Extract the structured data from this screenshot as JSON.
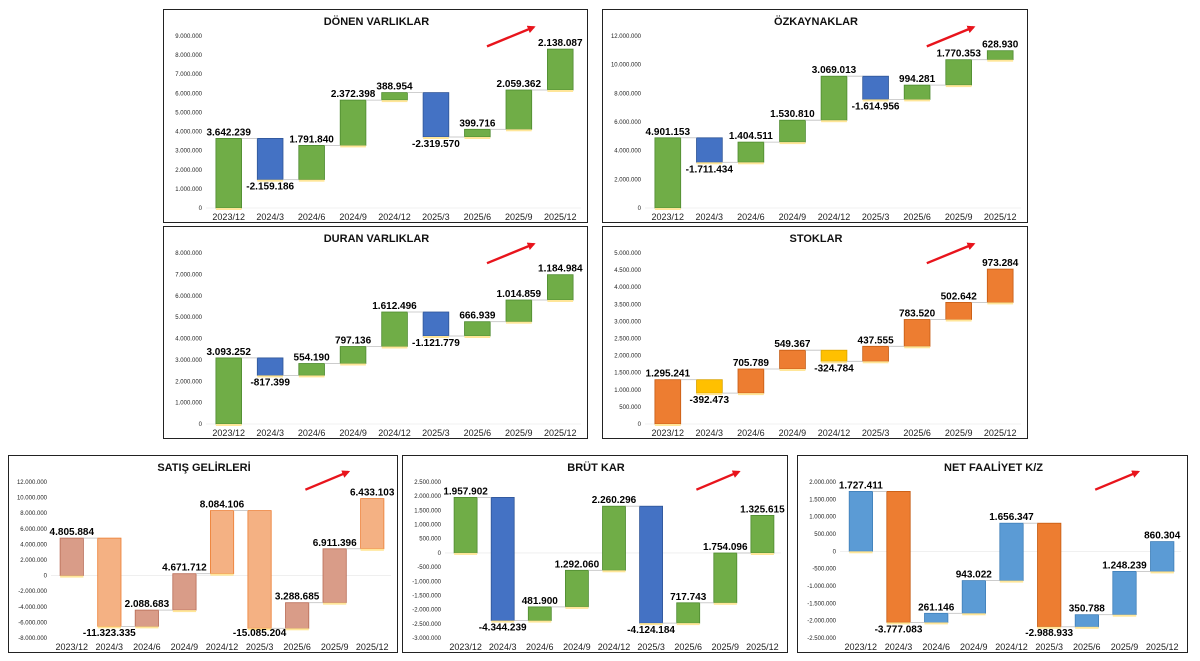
{
  "colors": {
    "green": "#70ad47",
    "green_edge": "#4e8a2f",
    "blue": "#4472c4",
    "blue_edge": "#2f5597",
    "orange": "#ed7d31",
    "orange_edge": "#c55a11",
    "gold": "#ffc000",
    "gold_edge": "#d9a300",
    "salmon": "#f4b183",
    "salmon_edge": "#ed7d31",
    "rosy": "#d99c88",
    "rosy_edge": "#b86b55",
    "lightblue": "#5b9bd5",
    "lightblue_edge": "#3f7fb8",
    "arrow": "#e8141c",
    "connector": "#bfbfbf"
  },
  "chart_data": [
    {
      "id": "donen",
      "type": "waterfall",
      "title": "DÖNEN VARLIKLAR",
      "categories": [
        "2023/12",
        "2024/3",
        "2024/6",
        "2024/9",
        "2024/12",
        "2025/3",
        "2025/6",
        "2025/9",
        "2025/12"
      ],
      "values": [
        3642239,
        -2159186,
        1791840,
        2372398,
        388954,
        -2319570,
        399716,
        2059362,
        2138087
      ],
      "labels": [
        "3.642.239",
        "-2.159.186",
        "1.791.840",
        "2.372.398",
        "388.954",
        "-2.319.570",
        "399.716",
        "2.059.362",
        "2.138.087"
      ],
      "yticks": [
        0,
        1000000,
        2000000,
        3000000,
        4000000,
        5000000,
        6000000,
        7000000,
        8000000,
        9000000
      ],
      "ytick_labels": [
        "0",
        "1.000.000",
        "2.000.000",
        "3.000.000",
        "4.000.000",
        "5.000.000",
        "6.000.000",
        "7.000.000",
        "8.000.000",
        "9.000.000"
      ],
      "ylim": [
        0,
        9000000
      ],
      "bar_colors": [
        "green",
        "blue",
        "green",
        "green",
        "green",
        "blue",
        "green",
        "green",
        "green"
      ]
    },
    {
      "id": "ozkaynaklar",
      "type": "waterfall",
      "title": "ÖZKAYNAKLAR",
      "categories": [
        "2023/12",
        "2024/3",
        "2024/6",
        "2024/9",
        "2024/12",
        "2025/3",
        "2025/6",
        "2025/9",
        "2025/12"
      ],
      "values": [
        4901153,
        -1711434,
        1404511,
        1530810,
        3069013,
        -1614956,
        994281,
        1770353,
        628930
      ],
      "labels": [
        "4.901.153",
        "-1.711.434",
        "1.404.511",
        "1.530.810",
        "3.069.013",
        "-1.614.956",
        "994.281",
        "1.770.353",
        "628.930"
      ],
      "yticks": [
        0,
        2000000,
        4000000,
        6000000,
        8000000,
        10000000,
        12000000
      ],
      "ytick_labels": [
        "0",
        "2.000.000",
        "4.000.000",
        "6.000.000",
        "8.000.000",
        "10.000.000",
        "12.000.000"
      ],
      "ylim": [
        0,
        12000000
      ],
      "bar_colors": [
        "green",
        "blue",
        "green",
        "green",
        "green",
        "blue",
        "green",
        "green",
        "green"
      ]
    },
    {
      "id": "duran",
      "type": "waterfall",
      "title": "DURAN VARLIKLAR",
      "categories": [
        "2023/12",
        "2024/3",
        "2024/6",
        "2024/9",
        "2024/12",
        "2025/3",
        "2025/6",
        "2025/9",
        "2025/12"
      ],
      "values": [
        3093252,
        -817399,
        554190,
        797136,
        1612496,
        -1121779,
        666939,
        1014859,
        1184984
      ],
      "labels": [
        "3.093.252",
        "-817.399",
        "554.190",
        "797.136",
        "1.612.496",
        "-1.121.779",
        "666.939",
        "1.014.859",
        "1.184.984"
      ],
      "yticks": [
        0,
        1000000,
        2000000,
        3000000,
        4000000,
        5000000,
        6000000,
        7000000,
        8000000
      ],
      "ytick_labels": [
        "0",
        "1.000.000",
        "2.000.000",
        "3.000.000",
        "4.000.000",
        "5.000.000",
        "6.000.000",
        "7.000.000",
        "8.000.000"
      ],
      "ylim": [
        0,
        8000000
      ],
      "bar_colors": [
        "green",
        "blue",
        "green",
        "green",
        "green",
        "blue",
        "green",
        "green",
        "green"
      ]
    },
    {
      "id": "stoklar",
      "type": "waterfall",
      "title": "STOKLAR",
      "categories": [
        "2023/12",
        "2024/3",
        "2024/6",
        "2024/9",
        "2024/12",
        "2025/3",
        "2025/6",
        "2025/9",
        "2025/12"
      ],
      "values": [
        1295241,
        -392473,
        705789,
        549367,
        -324784,
        437555,
        783520,
        502642,
        973284
      ],
      "labels": [
        "1.295.241",
        "-392.473",
        "705.789",
        "549.367",
        "-324.784",
        "437.555",
        "783.520",
        "502.642",
        "973.284"
      ],
      "yticks": [
        0,
        500000,
        1000000,
        1500000,
        2000000,
        2500000,
        3000000,
        3500000,
        4000000,
        4500000,
        5000000
      ],
      "ytick_labels": [
        "0",
        "500.000",
        "1.000.000",
        "1.500.000",
        "2.000.000",
        "2.500.000",
        "3.000.000",
        "3.500.000",
        "4.000.000",
        "4.500.000",
        "5.000.000"
      ],
      "ylim": [
        0,
        5000000
      ],
      "bar_colors": [
        "orange",
        "gold",
        "orange",
        "orange",
        "gold",
        "orange",
        "orange",
        "orange",
        "orange"
      ]
    },
    {
      "id": "satis",
      "type": "waterfall",
      "title": "SATIŞ GELİRLERİ",
      "categories": [
        "2023/12",
        "2024/3",
        "2024/6",
        "2024/9",
        "2024/12",
        "2025/3",
        "2025/6",
        "2025/9",
        "2025/12"
      ],
      "values": [
        4805884,
        -11323335,
        2088683,
        4671712,
        8084106,
        -15085204,
        3288685,
        6911396,
        6433103
      ],
      "labels": [
        "4.805.884",
        "-11.323.335",
        "2.088.683",
        "4.671.712",
        "8.084.106",
        "-15.085.204",
        "3.288.685",
        "6.911.396",
        "6.433.103"
      ],
      "yticks": [
        -8000000,
        -6000000,
        -4000000,
        -2000000,
        0,
        2000000,
        4000000,
        6000000,
        8000000,
        10000000,
        12000000
      ],
      "ytick_labels": [
        "-8.000.000",
        "-6.000.000",
        "-4.000.000",
        "-2.000.000",
        "0",
        "2.000.000",
        "4.000.000",
        "6.000.000",
        "8.000.000",
        "10.000.000",
        "12.000.000"
      ],
      "ylim": [
        -8000000,
        12000000
      ],
      "bar_colors": [
        "rosy",
        "salmon",
        "rosy",
        "rosy",
        "salmon",
        "salmon",
        "rosy",
        "rosy",
        "salmon"
      ]
    },
    {
      "id": "brut",
      "type": "waterfall",
      "title": "BRÜT KAR",
      "categories": [
        "2023/12",
        "2024/3",
        "2024/6",
        "2024/9",
        "2024/12",
        "2025/3",
        "2025/6",
        "2025/9",
        "2025/12"
      ],
      "values": [
        1957902,
        -4344239,
        481900,
        1292060,
        2260296,
        -4124184,
        717743,
        1754096,
        1325615
      ],
      "labels": [
        "1.957.902",
        "-4.344.239",
        "481.900",
        "1.292.060",
        "2.260.296",
        "-4.124.184",
        "717.743",
        "1.754.096",
        "1.325.615"
      ],
      "yticks": [
        -3000000,
        -2500000,
        -2000000,
        -1500000,
        -1000000,
        -500000,
        0,
        500000,
        1000000,
        1500000,
        2000000,
        2500000
      ],
      "ytick_labels": [
        "-3.000.000",
        "-2.500.000",
        "-2.000.000",
        "-1.500.000",
        "-1.000.000",
        "-500.000",
        "0",
        "500.000",
        "1.000.000",
        "1.500.000",
        "2.000.000",
        "2.500.000"
      ],
      "ylim": [
        -3000000,
        2500000
      ],
      "bar_colors": [
        "green",
        "blue",
        "green",
        "green",
        "green",
        "blue",
        "green",
        "green",
        "green"
      ]
    },
    {
      "id": "netfaaliyet",
      "type": "waterfall",
      "title": "NET FAALİYET K/Z",
      "categories": [
        "2023/12",
        "2024/3",
        "2024/6",
        "2024/9",
        "2024/12",
        "2025/3",
        "2025/6",
        "2025/9",
        "2025/12"
      ],
      "values": [
        1727411,
        -3777083,
        261146,
        943022,
        1656347,
        -2988933,
        350788,
        1248239,
        860304
      ],
      "labels": [
        "1.727.411",
        "-3.777.083",
        "261.146",
        "943.022",
        "1.656.347",
        "-2.988.933",
        "350.788",
        "1.248.239",
        "860.304"
      ],
      "yticks": [
        -2500000,
        -2000000,
        -1500000,
        -1000000,
        -500000,
        0,
        500000,
        1000000,
        1500000,
        2000000
      ],
      "ytick_labels": [
        "-2.500.000",
        "-2.000.000",
        "-1.500.000",
        "-1.000.000",
        "-500.000",
        "0",
        "500.000",
        "1.000.000",
        "1.500.000",
        "2.000.000"
      ],
      "ylim": [
        -2500000,
        2000000
      ],
      "bar_colors": [
        "lightblue",
        "orange",
        "lightblue",
        "lightblue",
        "lightblue",
        "orange",
        "lightblue",
        "lightblue",
        "lightblue"
      ]
    }
  ]
}
